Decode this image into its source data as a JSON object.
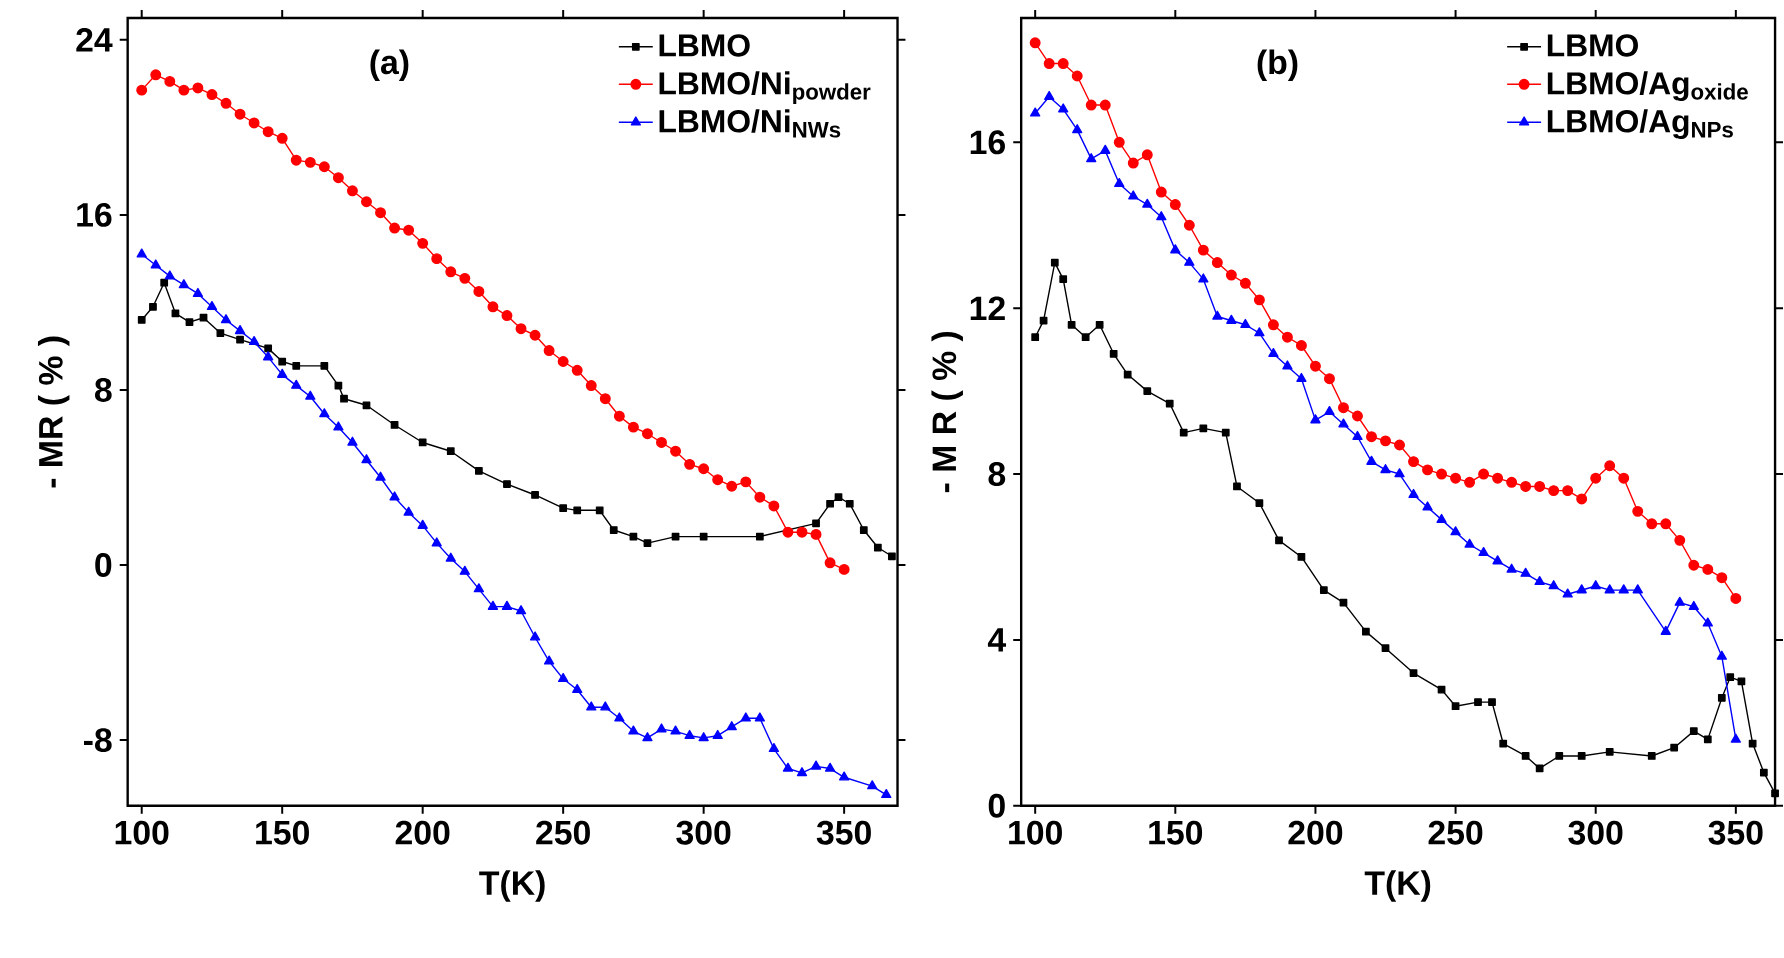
{
  "chart_data": [
    {
      "type": "line",
      "xlabel": "T(K)",
      "ylabel": "- MR ( % )",
      "annotations": [
        "(a)"
      ],
      "xlim": [
        95,
        369
      ],
      "ylim": [
        -11,
        25
      ],
      "xticks": [
        100,
        150,
        200,
        250,
        300,
        350
      ],
      "yticks": [
        -8,
        0,
        8,
        16,
        24
      ],
      "legend": "top right",
      "line_style": "solid",
      "series": [
        {
          "name": "LBMO",
          "color": "#000000",
          "marker": "square",
          "x": [
            100,
            104,
            108,
            112,
            117,
            122,
            128,
            135,
            145,
            150,
            155,
            165,
            170,
            172,
            180,
            190,
            200,
            210,
            220,
            230,
            240,
            250,
            255,
            263,
            268,
            275,
            280,
            290,
            300,
            320,
            330,
            340,
            345,
            348,
            352,
            357,
            362,
            367
          ],
          "values": [
            11.2,
            11.8,
            12.9,
            11.5,
            11.1,
            11.3,
            10.6,
            10.3,
            9.9,
            9.3,
            9.1,
            9.1,
            8.2,
            7.6,
            7.3,
            6.4,
            5.6,
            5.2,
            4.3,
            3.7,
            3.2,
            2.6,
            2.5,
            2.5,
            1.6,
            1.3,
            1.0,
            1.3,
            1.3,
            1.3,
            null,
            1.9,
            2.8,
            3.1,
            2.8,
            1.6,
            0.8,
            0.4
          ]
        },
        {
          "name": "LBMO/Ni$_{powder}$",
          "color": "#ff0000",
          "marker": "circle",
          "x": [
            100,
            105,
            110,
            115,
            120,
            125,
            130,
            135,
            140,
            145,
            150,
            155,
            160,
            165,
            170,
            175,
            180,
            185,
            190,
            195,
            200,
            205,
            210,
            215,
            220,
            225,
            230,
            235,
            240,
            245,
            250,
            255,
            260,
            265,
            270,
            275,
            280,
            285,
            290,
            295,
            300,
            305,
            310,
            315,
            320,
            325,
            330,
            335,
            340,
            345,
            350
          ],
          "values": [
            21.7,
            22.4,
            22.1,
            21.7,
            21.8,
            21.5,
            21.1,
            20.6,
            20.2,
            19.8,
            19.5,
            18.5,
            18.4,
            18.2,
            17.7,
            17.1,
            16.6,
            16.1,
            15.4,
            15.3,
            14.7,
            14.0,
            13.4,
            13.1,
            12.5,
            11.8,
            11.4,
            10.8,
            10.5,
            9.8,
            9.3,
            8.9,
            8.2,
            7.6,
            6.8,
            6.3,
            6.0,
            5.6,
            5.2,
            4.6,
            4.4,
            3.9,
            3.6,
            3.8,
            3.1,
            2.7,
            1.5,
            1.5,
            1.4,
            0.1,
            -0.2
          ]
        },
        {
          "name": "LBMO/Ni$_{NWs}$",
          "color": "#0000ff",
          "marker": "triangle",
          "x": [
            100,
            105,
            110,
            115,
            120,
            125,
            130,
            135,
            140,
            145,
            150,
            155,
            160,
            165,
            170,
            175,
            180,
            185,
            190,
            195,
            200,
            205,
            210,
            215,
            220,
            225,
            230,
            235,
            240,
            245,
            250,
            255,
            260,
            265,
            270,
            275,
            280,
            285,
            290,
            295,
            300,
            305,
            310,
            315,
            320,
            325,
            330,
            335,
            340,
            345,
            350,
            360,
            365
          ],
          "values": [
            14.2,
            13.7,
            13.2,
            12.8,
            12.4,
            11.8,
            11.2,
            10.7,
            10.2,
            9.5,
            8.7,
            8.2,
            7.7,
            6.9,
            6.3,
            5.6,
            4.8,
            4.0,
            3.1,
            2.4,
            1.8,
            1.0,
            0.3,
            -0.3,
            -1.1,
            -1.9,
            -1.9,
            -2.1,
            -3.3,
            -4.4,
            -5.2,
            -5.7,
            -6.5,
            -6.5,
            -7.0,
            -7.6,
            -7.9,
            -7.5,
            -7.6,
            -7.8,
            -7.9,
            -7.8,
            -7.4,
            -7.0,
            -7.0,
            -8.4,
            -9.3,
            -9.5,
            -9.2,
            -9.3,
            -9.7,
            -10.1,
            -10.5
          ]
        }
      ]
    },
    {
      "type": "line",
      "xlabel": "T(K)",
      "ylabel": "- M R ( % )",
      "annotations": [
        "(b)"
      ],
      "xlim": [
        95,
        364
      ],
      "ylim": [
        0,
        19
      ],
      "xticks": [
        100,
        150,
        200,
        250,
        300,
        350
      ],
      "yticks": [
        0,
        4,
        8,
        12,
        16
      ],
      "legend": "top right",
      "line_style": "solid",
      "series": [
        {
          "name": "LBMO",
          "color": "#000000",
          "marker": "square",
          "x": [
            100,
            103,
            107,
            110,
            113,
            118,
            123,
            128,
            133,
            140,
            148,
            153,
            160,
            168,
            172,
            180,
            187,
            195,
            203,
            210,
            218,
            225,
            235,
            245,
            250,
            258,
            263,
            267,
            275,
            280,
            287,
            295,
            305,
            320,
            328,
            335,
            340,
            345,
            348,
            352,
            356,
            360,
            364
          ],
          "values": [
            11.3,
            11.7,
            13.1,
            12.7,
            11.6,
            11.3,
            11.6,
            10.9,
            10.4,
            10.0,
            9.7,
            9.0,
            9.1,
            9.0,
            7.7,
            7.3,
            6.4,
            6.0,
            5.2,
            4.9,
            4.2,
            3.8,
            3.2,
            2.8,
            2.4,
            2.5,
            2.5,
            1.5,
            1.2,
            0.9,
            1.2,
            1.2,
            1.3,
            1.2,
            1.4,
            1.8,
            1.6,
            2.6,
            3.1,
            3.0,
            1.5,
            0.8,
            0.3
          ]
        },
        {
          "name": "LBMO/Ag$_{oxide}$",
          "color": "#ff0000",
          "marker": "circle",
          "x": [
            100,
            105,
            110,
            115,
            120,
            125,
            130,
            135,
            140,
            145,
            150,
            155,
            160,
            165,
            170,
            175,
            180,
            185,
            190,
            195,
            200,
            205,
            210,
            215,
            220,
            225,
            230,
            235,
            240,
            245,
            250,
            255,
            260,
            265,
            270,
            275,
            280,
            285,
            290,
            295,
            300,
            305,
            310,
            315,
            320,
            325,
            330,
            335,
            340,
            345,
            350
          ],
          "values": [
            18.4,
            17.9,
            17.9,
            17.6,
            16.9,
            16.9,
            16.0,
            15.5,
            15.7,
            14.8,
            14.5,
            14.0,
            13.4,
            13.1,
            12.8,
            12.6,
            12.2,
            11.6,
            11.3,
            11.1,
            10.6,
            10.3,
            9.6,
            9.4,
            8.9,
            8.8,
            8.7,
            8.3,
            8.1,
            8.0,
            7.9,
            7.8,
            8.0,
            7.9,
            7.8,
            7.7,
            7.7,
            7.6,
            7.6,
            7.4,
            7.9,
            8.2,
            7.9,
            7.1,
            6.8,
            6.8,
            6.4,
            5.8,
            5.7,
            5.5,
            5.0
          ]
        },
        {
          "name": "LBMO/Ag$_{NPs}$",
          "color": "#0000ff",
          "marker": "triangle",
          "x": [
            100,
            105,
            110,
            115,
            120,
            125,
            130,
            135,
            140,
            145,
            150,
            155,
            160,
            165,
            170,
            175,
            180,
            185,
            190,
            195,
            200,
            205,
            210,
            215,
            220,
            225,
            230,
            235,
            240,
            245,
            250,
            255,
            260,
            265,
            270,
            275,
            280,
            285,
            290,
            295,
            300,
            305,
            310,
            315,
            325,
            330,
            335,
            340,
            345,
            350
          ],
          "values": [
            16.7,
            17.1,
            16.8,
            16.3,
            15.6,
            15.8,
            15.0,
            14.7,
            14.5,
            14.2,
            13.4,
            13.1,
            12.7,
            11.8,
            11.7,
            11.6,
            11.4,
            10.9,
            10.6,
            10.3,
            9.3,
            9.5,
            9.2,
            8.9,
            8.3,
            8.1,
            8.0,
            7.5,
            7.2,
            6.9,
            6.6,
            6.3,
            6.1,
            5.9,
            5.7,
            5.6,
            5.4,
            5.3,
            5.1,
            5.2,
            5.3,
            5.2,
            5.2,
            5.2,
            4.2,
            4.9,
            4.8,
            4.4,
            3.6,
            1.6
          ]
        }
      ]
    }
  ]
}
